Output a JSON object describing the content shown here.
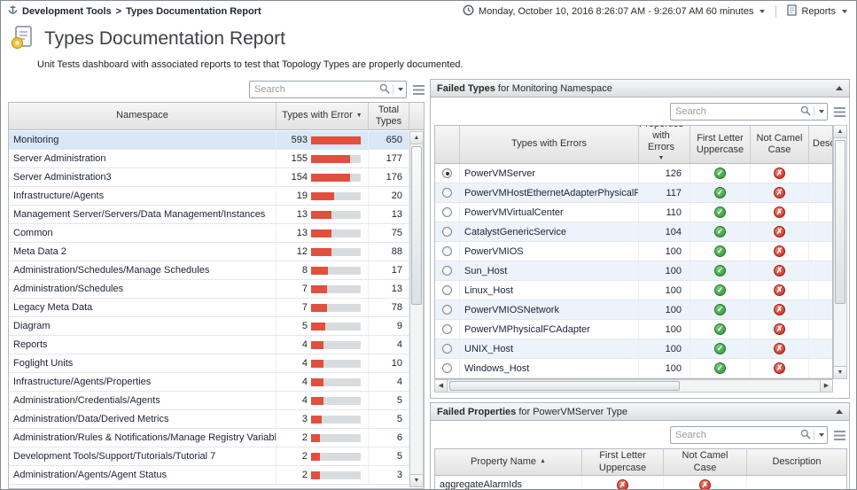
{
  "breadcrumb": {
    "parent": "Development Tools",
    "separator": ">",
    "current": "Types Documentation Report"
  },
  "topbar": {
    "time_range": "Monday, October 10, 2016 8:26:07 AM - 9:26:07 AM 60 minutes",
    "reports_label": "Reports"
  },
  "header": {
    "title": "Types Documentation Report",
    "subtitle": "Unit Tests dashboard with associated reports to test that Topology Types are properly documented."
  },
  "status_colors": {
    "pass": "#2f9335",
    "fail": "#c3271b",
    "bar_fill": "#e0503c"
  },
  "namespace_panel": {
    "search_placeholder": "Search",
    "columns": {
      "namespace": "Namespace",
      "errors": "Types with Error",
      "total": "Total Types"
    },
    "sort": {
      "column": "Types with Error",
      "direction": "desc"
    },
    "rows": [
      {
        "namespace": "Monitoring",
        "types_with_error": 593,
        "total_types": 650,
        "selected": true
      },
      {
        "namespace": "Server Administration",
        "types_with_error": 155,
        "total_types": 177
      },
      {
        "namespace": "Server Administration3",
        "types_with_error": 154,
        "total_types": 176
      },
      {
        "namespace": "Infrastructure/Agents",
        "types_with_error": 19,
        "total_types": 20
      },
      {
        "namespace": "Management Server/Servers/Data Management/Instances",
        "types_with_error": 13,
        "total_types": 13
      },
      {
        "namespace": "Common",
        "types_with_error": 13,
        "total_types": 75
      },
      {
        "namespace": "Meta Data 2",
        "types_with_error": 12,
        "total_types": 88
      },
      {
        "namespace": "Administration/Schedules/Manage Schedules",
        "types_with_error": 8,
        "total_types": 17
      },
      {
        "namespace": "Administration/Schedules",
        "types_with_error": 7,
        "total_types": 13
      },
      {
        "namespace": "Legacy Meta Data",
        "types_with_error": 7,
        "total_types": 78
      },
      {
        "namespace": "Diagram",
        "types_with_error": 5,
        "total_types": 9
      },
      {
        "namespace": "Reports",
        "types_with_error": 4,
        "total_types": 4
      },
      {
        "namespace": "Foglight Units",
        "types_with_error": 4,
        "total_types": 10
      },
      {
        "namespace": "Infrastructure/Agents/Properties",
        "types_with_error": 4,
        "total_types": 4
      },
      {
        "namespace": "Administration/Credentials/Agents",
        "types_with_error": 4,
        "total_types": 5
      },
      {
        "namespace": "Administration/Data/Derived Metrics",
        "types_with_error": 3,
        "total_types": 5
      },
      {
        "namespace": "Administration/Rules & Notifications/Manage Registry Variables",
        "types_with_error": 2,
        "total_types": 6
      },
      {
        "namespace": "Development Tools/Support/Tutorials/Tutorial 7",
        "types_with_error": 2,
        "total_types": 5
      },
      {
        "namespace": "Administration/Agents/Agent Status",
        "types_with_error": 2,
        "total_types": 3
      }
    ]
  },
  "failed_types_panel": {
    "title_strong": "Failed Types",
    "title_rest": "for Monitoring Namespace",
    "search_placeholder": "Search",
    "columns": {
      "type": "Types with Errors",
      "props": "Properties with Errors",
      "first": "First Letter Uppercase",
      "camel": "Not Camel Case",
      "desc": "Description"
    },
    "sort": {
      "column": "Properties with Errors",
      "direction": "desc"
    },
    "rows": [
      {
        "type": "PowerVMServer",
        "properties_with_errors": 126,
        "first_letter_uppercase": "pass",
        "not_camel_case": "fail",
        "selected": true
      },
      {
        "type": "PowerVMHostEthernetAdapterPhysicalPort",
        "properties_with_errors": 117,
        "first_letter_uppercase": "pass",
        "not_camel_case": "fail"
      },
      {
        "type": "PowerVMVirtualCenter",
        "properties_with_errors": 110,
        "first_letter_uppercase": "pass",
        "not_camel_case": "fail"
      },
      {
        "type": "CatalystGenericService",
        "properties_with_errors": 104,
        "first_letter_uppercase": "pass",
        "not_camel_case": "fail"
      },
      {
        "type": "PowerVMIOS",
        "properties_with_errors": 100,
        "first_letter_uppercase": "pass",
        "not_camel_case": "fail"
      },
      {
        "type": "Sun_Host",
        "properties_with_errors": 100,
        "first_letter_uppercase": "pass",
        "not_camel_case": "fail"
      },
      {
        "type": "Linux_Host",
        "properties_with_errors": 100,
        "first_letter_uppercase": "pass",
        "not_camel_case": "fail"
      },
      {
        "type": "PowerVMIOSNetwork",
        "properties_with_errors": 100,
        "first_letter_uppercase": "pass",
        "not_camel_case": "fail"
      },
      {
        "type": "PowerVMPhysicalFCAdapter",
        "properties_with_errors": 100,
        "first_letter_uppercase": "pass",
        "not_camel_case": "fail"
      },
      {
        "type": "UNIX_Host",
        "properties_with_errors": 100,
        "first_letter_uppercase": "pass",
        "not_camel_case": "fail"
      },
      {
        "type": "Windows_Host",
        "properties_with_errors": 100,
        "first_letter_uppercase": "pass",
        "not_camel_case": "fail"
      }
    ]
  },
  "failed_properties_panel": {
    "title_strong": "Failed Properties",
    "title_rest": "for PowerVMServer Type",
    "search_placeholder": "Search",
    "columns": {
      "name": "Property Name",
      "first": "First Letter Uppercase",
      "camel": "Not Camel Case",
      "desc": "Description"
    },
    "sort": {
      "column": "Property Name",
      "direction": "asc"
    },
    "rows": [
      {
        "property_name": "aggregateAlarmIds",
        "first_letter_uppercase": "fail",
        "not_camel_case": "fail",
        "description": ""
      }
    ]
  }
}
